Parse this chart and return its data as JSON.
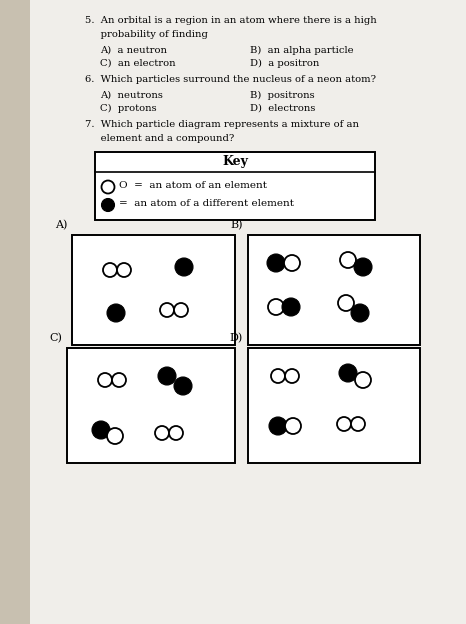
{
  "background_color": "#c8c0b0",
  "page_color": "#f0eeea",
  "text_color": "#222222",
  "q5_line1": "5.  An orbital is a region in an atom where there is a high",
  "q5_line2": "     probability of finding",
  "q5_A": "A)  a neutron",
  "q5_B": "B)  an alpha particle",
  "q5_C": "C)  an electron",
  "q5_D": "D)  a positron",
  "q6_line1": "6.  Which particles surround the nucleus of a neon atom?",
  "q6_A": "A)  neutrons",
  "q6_B": "B)  positrons",
  "q6_C": "C)  protons",
  "q6_D": "D)  electrons",
  "q7_line1": "7.  Which particle diagram represents a mixture of an",
  "q7_line2": "     element and a compound?",
  "key_title": "Key",
  "key_line1": "O  =  an atom of an element",
  "key_line2": "=  an atom of a different element",
  "label_A": "A)",
  "label_B": "B)",
  "label_C": "C)",
  "label_D": "D)"
}
